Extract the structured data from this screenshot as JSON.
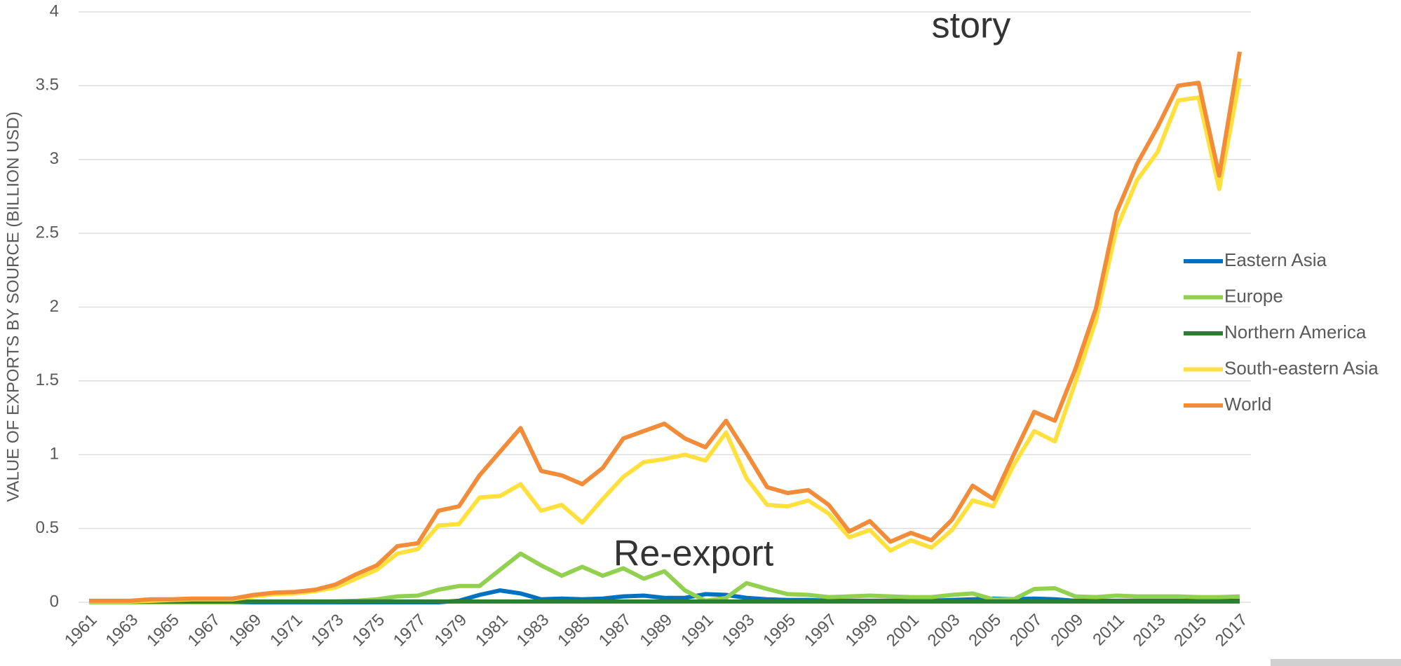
{
  "chart_data": {
    "type": "line",
    "title": "story",
    "annotation": "Re-export",
    "y_label": "VALUE OF EXPORTS BY SOURCE (BILLION USD)",
    "categories": [
      "1961",
      null,
      "1963",
      null,
      "1965",
      null,
      "1967",
      null,
      "1969",
      null,
      "1971",
      null,
      "1973",
      null,
      "1975",
      null,
      "1977",
      null,
      "1979",
      null,
      "1981",
      null,
      "1983",
      null,
      "1985",
      null,
      "1987",
      null,
      "1989",
      null,
      "1991",
      null,
      "1993",
      null,
      "1995",
      null,
      "1997",
      null,
      "1999",
      null,
      "2001",
      null,
      "2003",
      null,
      "2005",
      null,
      "2007",
      null,
      "2009",
      null,
      "2011",
      null,
      "2013",
      null,
      "2015",
      null,
      "2017"
    ],
    "ylim": [
      0,
      4
    ],
    "yticks": [
      0,
      0.5,
      1,
      1.5,
      2,
      2.5,
      3,
      3.5,
      4
    ],
    "grid": true,
    "legend": "right",
    "series": [
      {
        "name": "Eastern Asia",
        "color": "#0070c0",
        "values": [
          0,
          0,
          0,
          0,
          0,
          0,
          0,
          0,
          0,
          0,
          0,
          0,
          0,
          0,
          0,
          0,
          0,
          0,
          0.01,
          0.05,
          0.08,
          0.06,
          0.02,
          0.025,
          0.02,
          0.025,
          0.04,
          0.045,
          0.03,
          0.03,
          0.055,
          0.05,
          0.03,
          0.02,
          0.015,
          0.015,
          0.01,
          0.01,
          0.01,
          0.01,
          0.01,
          0.01,
          0.015,
          0.02,
          0.025,
          0.02,
          0.025,
          0.02,
          0.01,
          0.01,
          0.01,
          0.01,
          0.01,
          0.01,
          0.01,
          0.01,
          0.01
        ]
      },
      {
        "name": "Europe",
        "color": "#92d050",
        "values": [
          0,
          0,
          0,
          0,
          0,
          0,
          0,
          0,
          0.005,
          0.005,
          0.005,
          0.005,
          0.005,
          0.01,
          0.02,
          0.04,
          0.045,
          0.085,
          0.11,
          0.11,
          0.22,
          0.33,
          0.25,
          0.18,
          0.24,
          0.18,
          0.23,
          0.16,
          0.21,
          0.08,
          0.01,
          0.03,
          0.13,
          0.09,
          0.055,
          0.05,
          0.035,
          0.04,
          0.045,
          0.04,
          0.035,
          0.035,
          0.05,
          0.06,
          0.02,
          0.02,
          0.09,
          0.095,
          0.04,
          0.035,
          0.045,
          0.04,
          0.04,
          0.04,
          0.035,
          0.035,
          0.04
        ]
      },
      {
        "name": "Northern America",
        "color": "#2e7d32",
        "values": [
          0.005,
          0.005,
          0.005,
          0.005,
          0.005,
          0.005,
          0.005,
          0.005,
          0.005,
          0.005,
          0.005,
          0.005,
          0.005,
          0.005,
          0.005,
          0.005,
          0.005,
          0.005,
          0.005,
          0.005,
          0.005,
          0.005,
          0.005,
          0.005,
          0.005,
          0.005,
          0.005,
          0.005,
          0.005,
          0.005,
          0.005,
          0.005,
          0.005,
          0.005,
          0.005,
          0.005,
          0.005,
          0.005,
          0.005,
          0.005,
          0.005,
          0.005,
          0.005,
          0.005,
          0.005,
          0.005,
          0.005,
          0.005,
          0.005,
          0.005,
          0.005,
          0.005,
          0.005,
          0.005,
          0.005,
          0.005,
          0.005
        ]
      },
      {
        "name": "South-eastern Asia",
        "color": "#ffe03c",
        "values": [
          0.005,
          0.005,
          0.005,
          0.01,
          0.015,
          0.02,
          0.02,
          0.02,
          0.04,
          0.055,
          0.06,
          0.075,
          0.1,
          0.16,
          0.22,
          0.33,
          0.36,
          0.52,
          0.53,
          0.71,
          0.72,
          0.8,
          0.62,
          0.66,
          0.54,
          0.7,
          0.85,
          0.95,
          0.97,
          1.0,
          0.96,
          1.15,
          0.84,
          0.66,
          0.65,
          0.69,
          0.6,
          0.44,
          0.49,
          0.35,
          0.42,
          0.37,
          0.49,
          0.69,
          0.65,
          0.93,
          1.16,
          1.09,
          1.49,
          1.91,
          2.53,
          2.86,
          3.05,
          3.4,
          3.42,
          2.8,
          3.55
        ]
      },
      {
        "name": "World",
        "color": "#f28c38",
        "values": [
          0.01,
          0.01,
          0.01,
          0.02,
          0.02,
          0.025,
          0.025,
          0.025,
          0.05,
          0.065,
          0.07,
          0.085,
          0.12,
          0.19,
          0.25,
          0.38,
          0.4,
          0.62,
          0.65,
          0.86,
          1.02,
          1.18,
          0.89,
          0.86,
          0.8,
          0.91,
          1.11,
          1.16,
          1.21,
          1.11,
          1.05,
          1.23,
          1.01,
          0.78,
          0.74,
          0.76,
          0.66,
          0.48,
          0.55,
          0.41,
          0.47,
          0.42,
          0.56,
          0.79,
          0.7,
          1.0,
          1.29,
          1.23,
          1.58,
          1.99,
          2.64,
          2.97,
          3.22,
          3.5,
          3.52,
          2.89,
          3.73
        ]
      }
    ]
  }
}
